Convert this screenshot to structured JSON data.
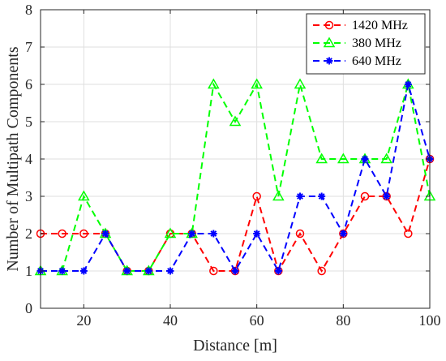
{
  "chart_data": {
    "type": "line",
    "title": "",
    "xlabel": "Distance [m]",
    "ylabel": "Number of Multipath Components",
    "xlim": [
      10,
      100
    ],
    "ylim": [
      0,
      8
    ],
    "xticks": [
      20,
      40,
      60,
      80,
      100
    ],
    "yticks": [
      0,
      1,
      2,
      3,
      4,
      5,
      6,
      7,
      8
    ],
    "grid": true,
    "legend_position": "top-right",
    "x": [
      10,
      15,
      20,
      25,
      30,
      35,
      40,
      45,
      50,
      55,
      60,
      65,
      70,
      75,
      80,
      85,
      90,
      95,
      100
    ],
    "series": [
      {
        "name": "1420 MHz",
        "color": "#ff0000",
        "marker": "circle",
        "line_style": "dashed",
        "values": [
          2,
          2,
          2,
          2,
          1,
          1,
          2,
          2,
          1,
          1,
          3,
          1,
          2,
          1,
          2,
          3,
          3,
          2,
          4
        ]
      },
      {
        "name": "380 MHz",
        "color": "#00ff00",
        "marker": "triangle",
        "line_style": "dashed",
        "values": [
          1,
          1,
          3,
          2,
          1,
          1,
          2,
          2,
          6,
          5,
          6,
          3,
          6,
          4,
          4,
          4,
          4,
          6,
          3
        ]
      },
      {
        "name": "640 MHz",
        "color": "#0000ff",
        "marker": "asterisk",
        "line_style": "dashed",
        "values": [
          1,
          1,
          1,
          2,
          1,
          1,
          1,
          2,
          2,
          1,
          2,
          1,
          3,
          3,
          2,
          4,
          3,
          6,
          4
        ]
      }
    ]
  }
}
